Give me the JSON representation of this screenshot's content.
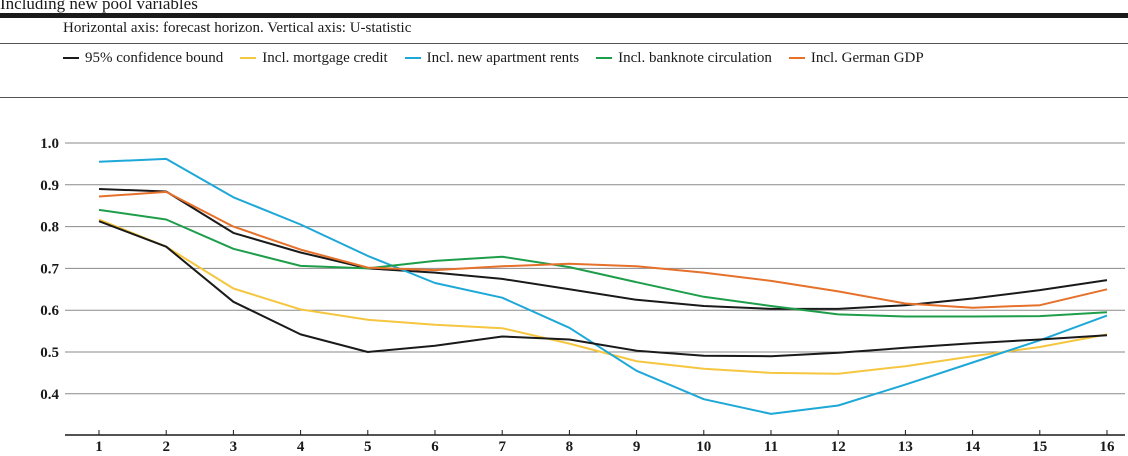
{
  "title": "Including new pool variables",
  "axis_note": "Horizontal axis: forecast horizon. Vertical axis: U-statistic",
  "chart_data": {
    "type": "line",
    "x": [
      1,
      2,
      3,
      4,
      5,
      6,
      7,
      8,
      9,
      10,
      11,
      12,
      13,
      14,
      15,
      16
    ],
    "ylim": [
      0.3,
      1.0
    ],
    "y_ticks": [
      "1.0",
      "0.9",
      "0.8",
      "0.7",
      "0.6",
      "0.5",
      "0.4"
    ],
    "y_tick_values": [
      1.0,
      0.9,
      0.8,
      0.7,
      0.6,
      0.5,
      0.4
    ],
    "x_ticks": [
      "1",
      "2",
      "3",
      "4",
      "5",
      "6",
      "7",
      "8",
      "9",
      "10",
      "11",
      "12",
      "13",
      "14",
      "15",
      "16"
    ],
    "grid": "horizontal",
    "legend_position": "top",
    "series": [
      {
        "name": "95% confidence bound",
        "color": "#1a1a1a",
        "values": [
          0.89,
          0.884,
          0.785,
          0.738,
          0.7,
          0.69,
          0.675,
          0.65,
          0.625,
          0.61,
          0.603,
          0.603,
          0.612,
          0.628,
          0.648,
          0.672
        ]
      },
      {
        "name": "Incl. mortgage credit",
        "color": "#f5c63f",
        "values": [
          0.817,
          0.752,
          0.652,
          0.602,
          0.577,
          0.565,
          0.557,
          0.52,
          0.478,
          0.46,
          0.45,
          0.448,
          0.466,
          0.49,
          0.512,
          0.542
        ]
      },
      {
        "name": "Incl. new apartment rents",
        "color": "#1ea8d8",
        "values": [
          0.955,
          0.962,
          0.87,
          0.805,
          0.73,
          0.665,
          0.63,
          0.558,
          0.455,
          0.387,
          0.352,
          0.372,
          0.422,
          0.475,
          0.528,
          0.587
        ]
      },
      {
        "name": "Incl. banknote circulation",
        "color": "#1e9e4a",
        "values": [
          0.84,
          0.817,
          0.747,
          0.706,
          0.7,
          0.718,
          0.728,
          0.703,
          0.667,
          0.632,
          0.61,
          0.59,
          0.585,
          0.585,
          0.586,
          0.595
        ]
      },
      {
        "name": "Incl. German GDP",
        "color": "#e5712b",
        "values": [
          0.872,
          0.883,
          0.8,
          0.745,
          0.702,
          0.696,
          0.705,
          0.711,
          0.705,
          0.69,
          0.67,
          0.645,
          0.616,
          0.606,
          0.612,
          0.65
        ]
      },
      {
        "name": "",
        "color": "#1a1a1a",
        "values": [
          0.813,
          0.752,
          0.62,
          0.542,
          0.5,
          0.515,
          0.537,
          0.53,
          0.503,
          0.491,
          0.49,
          0.498,
          0.51,
          0.521,
          0.53,
          0.54
        ]
      }
    ]
  }
}
